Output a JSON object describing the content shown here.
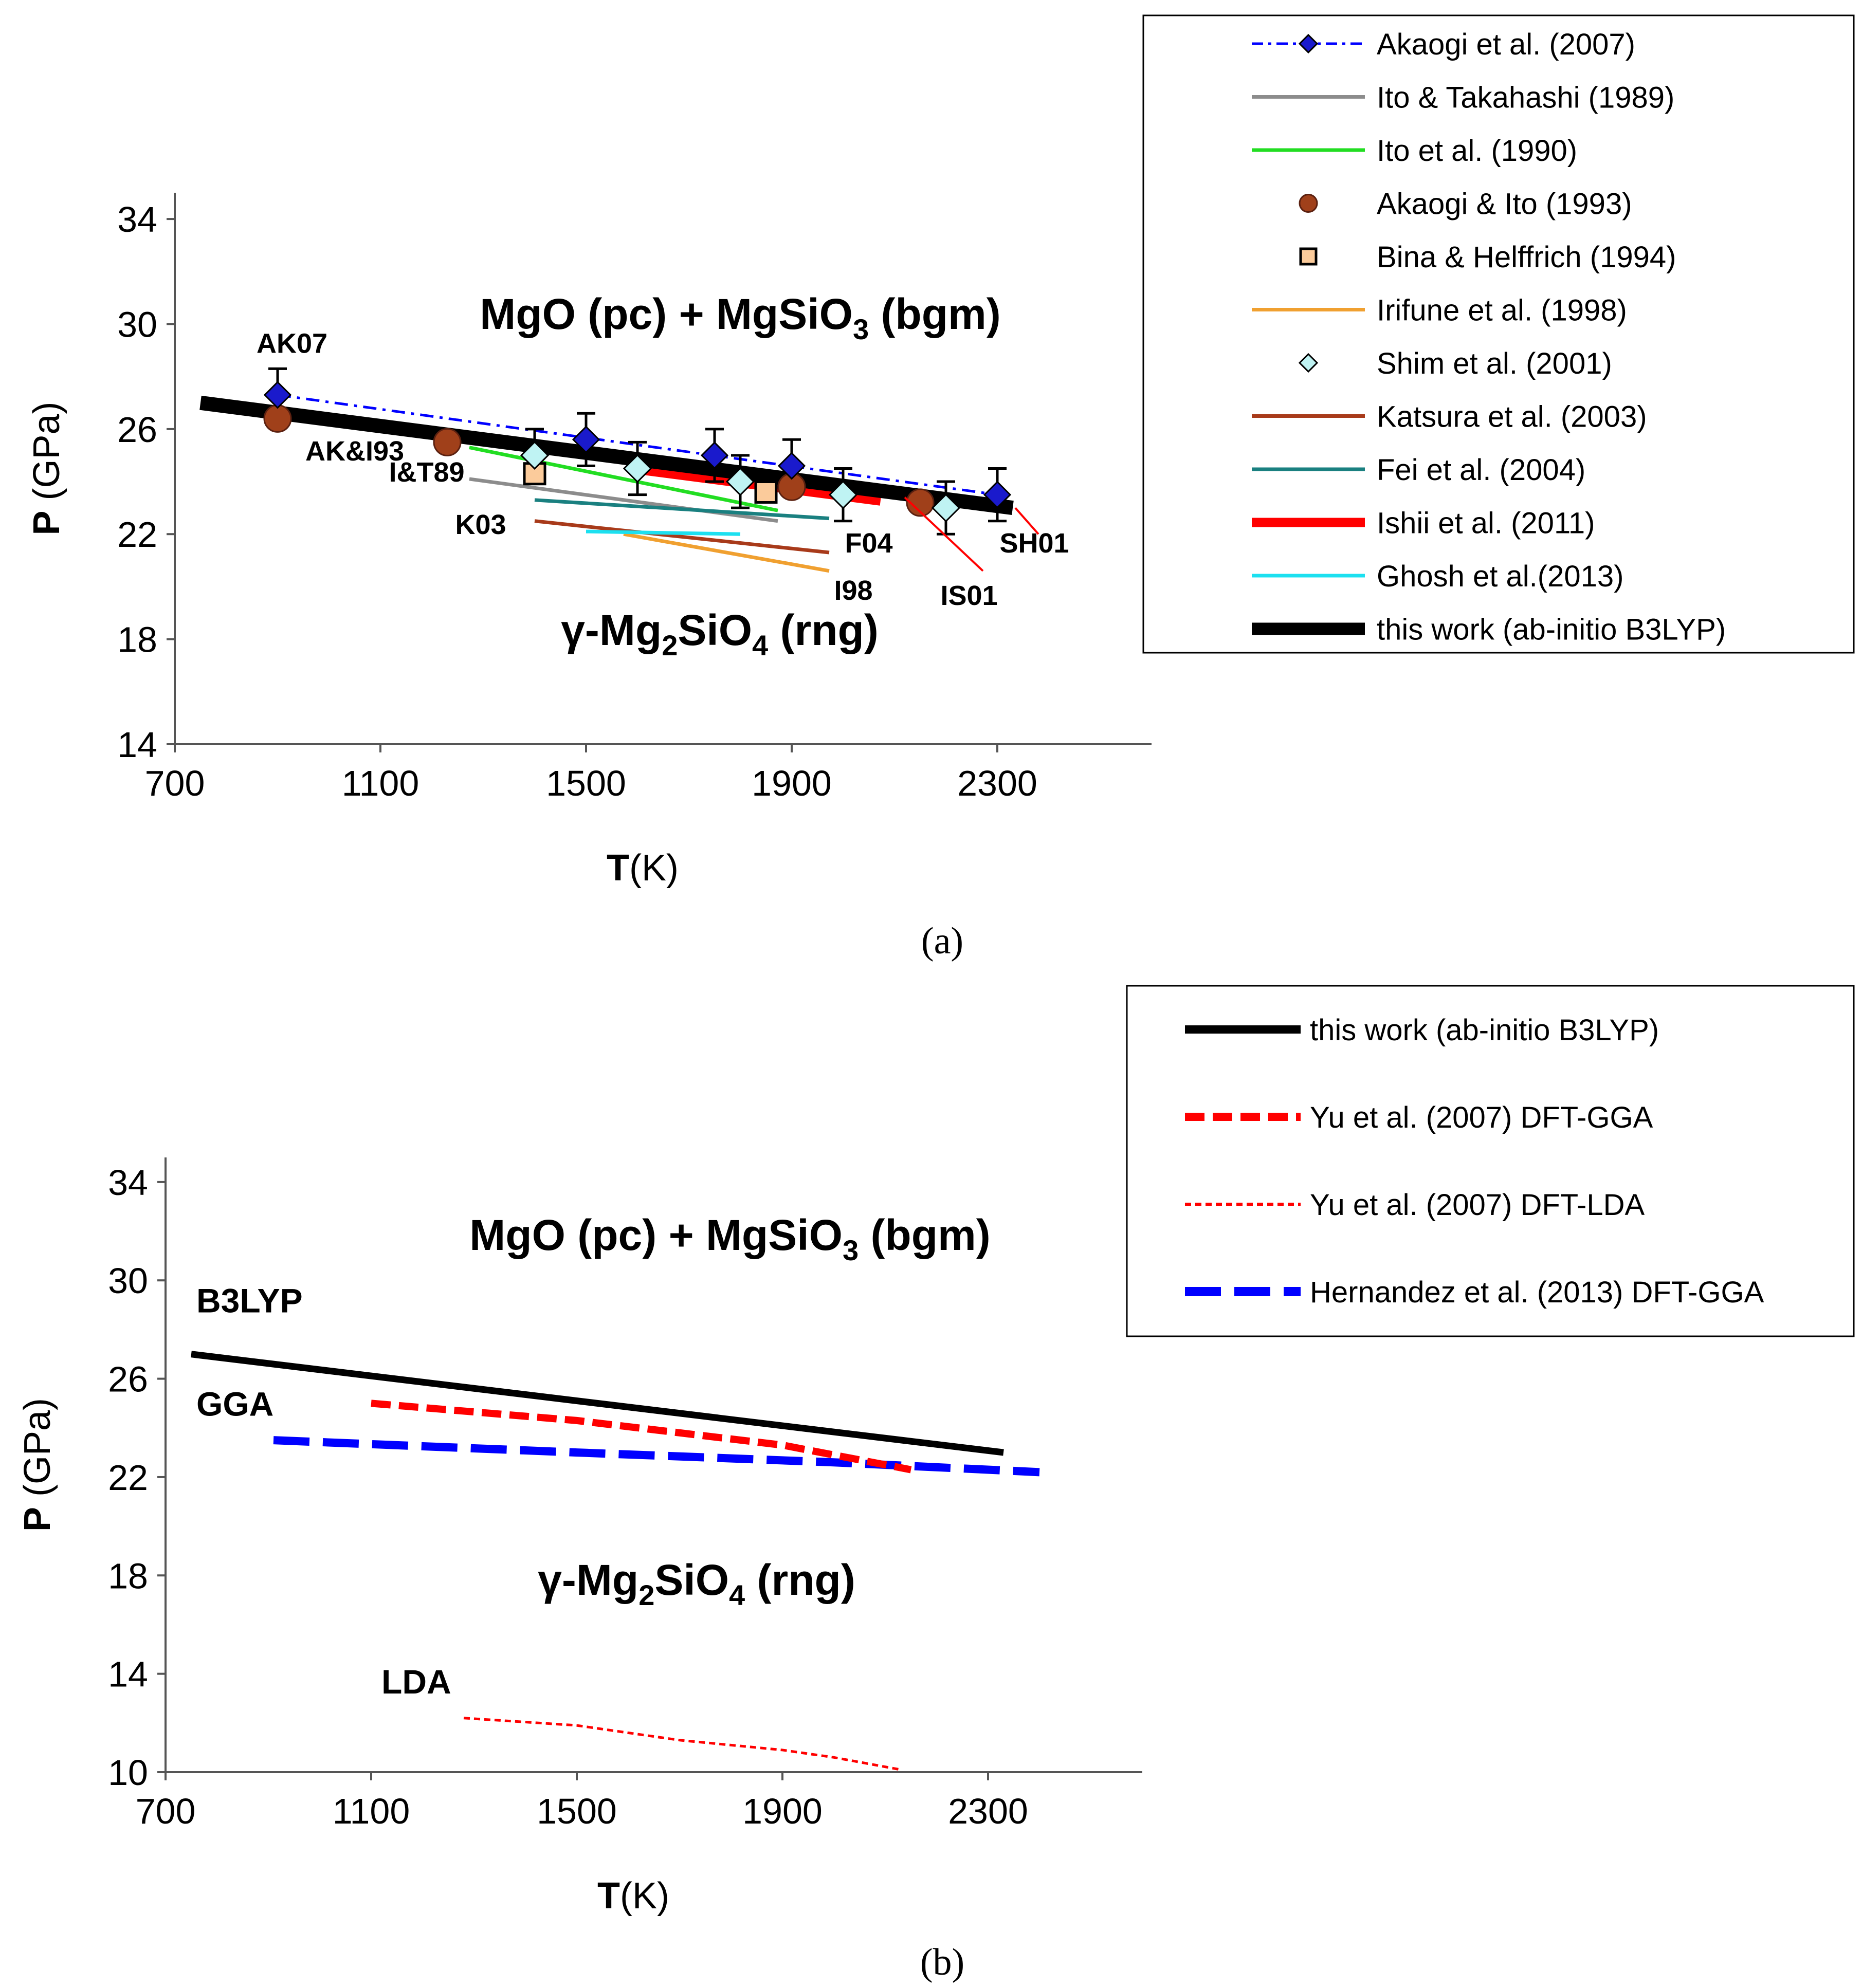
{
  "colors": {
    "akaogi2007": "#0000ff",
    "diamond_fill": "#1a1acc",
    "ito_takahashi": "#8c8c8c",
    "ito1990": "#22dd22",
    "akaogi_ito": "#a0401a",
    "bina_fill": "#fbcb9b",
    "irifune": "#f0a030",
    "shim_fill": "#bff3f3",
    "katsura": "#a83a1a",
    "fei": "#1a8080",
    "ishii": "#ff0000",
    "ghosh": "#1ce0f0",
    "this_work": "#000000",
    "yu_gga": "#ff0000",
    "yu_lda": "#ff0000",
    "hernandez": "#0000ff"
  },
  "chart_data": [
    {
      "id": "a",
      "type": "line",
      "caption": "(a)",
      "xlabel_bold": "T",
      "xlabel_rest": "(K)",
      "ylabel_bold": "P",
      "ylabel_rest": " (GPa)",
      "xlim": [
        700,
        2600
      ],
      "ylim": [
        14,
        35
      ],
      "xticks": [
        700,
        1100,
        1500,
        1900,
        2300
      ],
      "yticks": [
        14,
        18,
        22,
        26,
        30,
        34
      ],
      "region_top": {
        "pre": "MgO (pc) + MgSiO",
        "sub": "3",
        "post": " (bgm)"
      },
      "region_bottom": {
        "pre": "γ-Mg",
        "sub1": "2",
        "mid": "SiO",
        "sub2": "4",
        "post": " (rng)"
      },
      "legend": [
        {
          "key": "akaogi2007",
          "label": "Akaogi et al. (2007)",
          "style": "dashdot-diamond"
        },
        {
          "key": "ito_takahashi",
          "label": "Ito & Takahashi (1989)",
          "style": "line"
        },
        {
          "key": "ito1990",
          "label": "Ito et al. (1990)",
          "style": "line"
        },
        {
          "key": "akaogi_ito",
          "label": "Akaogi & Ito (1993)",
          "style": "circle"
        },
        {
          "key": "bina",
          "label": "Bina & Helffrich (1994)",
          "style": "square"
        },
        {
          "key": "irifune",
          "label": "Irifune et al. (1998)",
          "style": "line"
        },
        {
          "key": "shim",
          "label": "Shim et al. (2001)",
          "style": "diamond"
        },
        {
          "key": "katsura",
          "label": "Katsura et al. (2003)",
          "style": "line"
        },
        {
          "key": "fei",
          "label": "Fei et al. (2004)",
          "style": "line"
        },
        {
          "key": "ishii",
          "label": "Ishii et al. (2011)",
          "style": "thickline"
        },
        {
          "key": "ghosh",
          "label": "Ghosh et al.(2013)",
          "style": "line"
        },
        {
          "key": "this_work",
          "label": "this work (ab-initio B3LYP)",
          "style": "boldline"
        }
      ],
      "series": [
        {
          "name": "Ito & Takahashi (1989)",
          "key": "ito_takahashi",
          "width": 7,
          "x": [
            1273,
            1873
          ],
          "y": [
            24.1,
            22.5
          ]
        },
        {
          "name": "Ito et al. (1990)",
          "key": "ito1990",
          "width": 7,
          "x": [
            1273,
            1873
          ],
          "y": [
            25.3,
            22.9
          ]
        },
        {
          "name": "Irifune et al. (1998)",
          "key": "irifune",
          "width": 7,
          "x": [
            1573,
            1973
          ],
          "y": [
            22.0,
            20.6
          ]
        },
        {
          "name": "Katsura et al. (2003)",
          "key": "katsura",
          "width": 7,
          "x": [
            1400,
            1973
          ],
          "y": [
            22.5,
            21.3
          ]
        },
        {
          "name": "Fei et al. (2004)",
          "key": "fei",
          "width": 7,
          "x": [
            1400,
            1973
          ],
          "y": [
            23.3,
            22.6
          ]
        },
        {
          "name": "Ishii et al. (2011)",
          "key": "ishii",
          "width": 22,
          "x": [
            1600,
            2073
          ],
          "y": [
            24.5,
            23.3
          ]
        },
        {
          "name": "Ghosh et al.(2013)",
          "key": "ghosh",
          "width": 7,
          "x": [
            1500,
            1800
          ],
          "y": [
            22.1,
            22.0
          ]
        },
        {
          "name": "this work (ab-initio B3LYP)",
          "key": "this_work",
          "width": 28,
          "x": [
            750,
            2330
          ],
          "y": [
            27.0,
            23.0
          ]
        }
      ],
      "akaogi2007": {
        "x": [
          900,
          1500,
          1750,
          1900,
          2300
        ],
        "y": [
          27.3,
          25.6,
          25.0,
          24.6,
          23.5
        ],
        "err": [
          1.0,
          1.0,
          1.0,
          1.0,
          1.0
        ],
        "line_x": [
          900,
          2300
        ],
        "line_y": [
          27.3,
          23.5
        ]
      },
      "akaogi_ito": {
        "x": [
          900,
          1230,
          1900,
          2150
        ],
        "y": [
          26.4,
          25.5,
          23.8,
          23.2
        ]
      },
      "bina": {
        "x": [
          1400,
          1850
        ],
        "y": [
          24.3,
          23.6
        ]
      },
      "shim": {
        "x": [
          1400,
          1600,
          1800,
          2000,
          2200
        ],
        "y": [
          25.0,
          24.5,
          24.0,
          23.5,
          23.0
        ],
        "err": [
          1.0,
          1.0,
          1.0,
          1.0,
          1.0
        ]
      },
      "annotations": [
        {
          "text": "AK07",
          "x": 928,
          "y": 28.9
        },
        {
          "text": "AK&I93",
          "x": 1050,
          "y": 24.8
        },
        {
          "text": "I&T89",
          "x": 1190,
          "y": 24.0
        },
        {
          "text": "K03",
          "x": 1295,
          "y": 22.0
        },
        {
          "text": "F04",
          "x": 2050,
          "y": 21.3
        },
        {
          "text": "I98",
          "x": 2020,
          "y": 19.5
        },
        {
          "text": "IS01",
          "x": 2245,
          "y": 19.3
        },
        {
          "text": "SH01",
          "x": 2372,
          "y": 21.3
        }
      ]
    },
    {
      "id": "b",
      "type": "line",
      "caption": "(b)",
      "xlabel_bold": "T",
      "xlabel_rest": "(K)",
      "ylabel_bold": "P",
      "ylabel_rest": " (GPa)",
      "xlim": [
        700,
        2600
      ],
      "ylim": [
        10,
        35
      ],
      "xticks": [
        700,
        1100,
        1500,
        1900,
        2300
      ],
      "yticks": [
        10,
        14,
        18,
        22,
        26,
        30,
        34
      ],
      "region_top": {
        "pre": "MgO (pc) + MgSiO",
        "sub": "3",
        "post": " (bgm)"
      },
      "region_bottom": {
        "pre": "γ-Mg",
        "sub1": "2",
        "mid": "SiO",
        "sub2": "4",
        "post": " (rng)"
      },
      "legend": [
        {
          "key": "this_work",
          "label": "this work (ab-initio B3LYP)",
          "style": "solid"
        },
        {
          "key": "yu_gga",
          "label": "Yu et al. (2007) DFT-GGA",
          "style": "dash"
        },
        {
          "key": "yu_lda",
          "label": "Yu et al. (2007) DFT-LDA",
          "style": "dot"
        },
        {
          "key": "hernandez",
          "label": "Hernandez et al. (2013) DFT-GGA",
          "style": "longdash"
        }
      ],
      "series": [
        {
          "name": "this work (ab-initio B3LYP)",
          "key": "this_work",
          "x": [
            750,
            2330
          ],
          "y": [
            27.0,
            23.0
          ]
        },
        {
          "name": "Yu et al. (2007) DFT-GGA",
          "key": "yu_gga",
          "x": [
            1100,
            1500,
            1900,
            2150
          ],
          "y": [
            25.0,
            24.3,
            23.3,
            22.3
          ]
        },
        {
          "name": "Yu et al. (2007) DFT-LDA",
          "key": "yu_lda",
          "x": [
            1280,
            1500,
            1700,
            1900,
            2000,
            2130
          ],
          "y": [
            12.2,
            11.9,
            11.3,
            10.9,
            10.6,
            10.1
          ]
        },
        {
          "name": "Hernandez et al. (2013) DFT-GGA",
          "key": "hernandez",
          "x": [
            910,
            1500,
            2000,
            2400
          ],
          "y": [
            23.5,
            23.0,
            22.6,
            22.2
          ]
        }
      ],
      "annotations": [
        {
          "text": "B3LYP",
          "x": 760,
          "y": 28.7,
          "key": "this_work"
        },
        {
          "text": "GGA",
          "x": 760,
          "y": 24.5,
          "key": "hernandez"
        },
        {
          "text": "LDA",
          "x": 1120,
          "y": 13.2,
          "key": "yu_lda"
        }
      ]
    }
  ]
}
